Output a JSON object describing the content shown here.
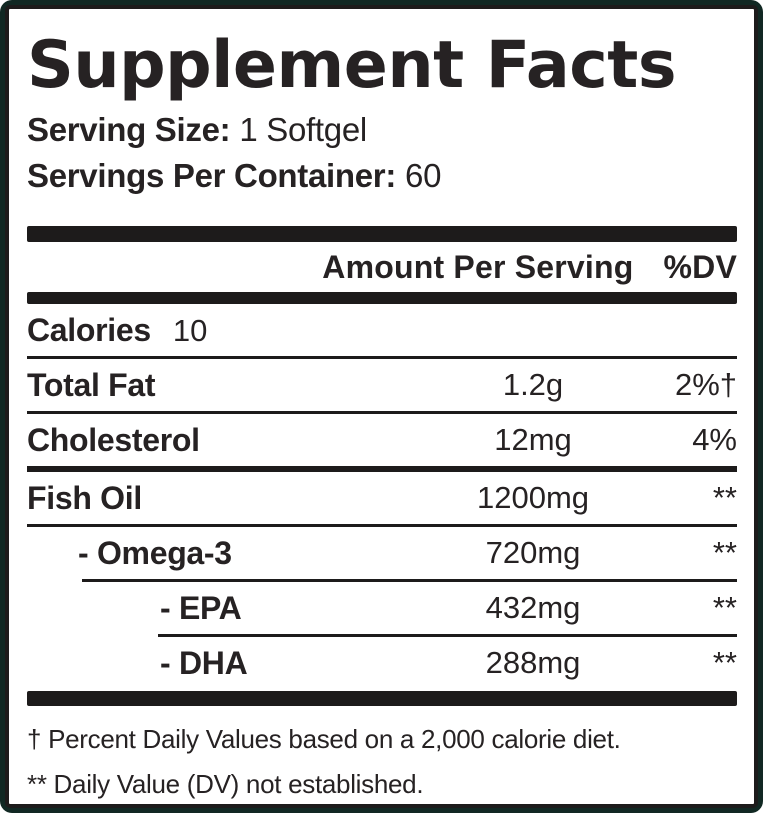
{
  "label": {
    "title": "Supplement Facts",
    "serving": {
      "size_label": "Serving Size:",
      "size_value": "1 Softgel",
      "per_container_label": "Servings Per Container:",
      "per_container_value": "60"
    },
    "table_header": {
      "amount_col": "Amount Per Serving",
      "dv_col": "%DV"
    },
    "rows": [
      {
        "id": "calories",
        "name": "Calories",
        "amount": "10",
        "dv": "",
        "indent": 0,
        "inline_amount": true,
        "divider_after": "thin",
        "divider_indent": 0
      },
      {
        "id": "total-fat",
        "name": "Total Fat",
        "amount": "1.2g",
        "dv": "2%†",
        "indent": 0,
        "inline_amount": false,
        "divider_after": "thin",
        "divider_indent": 0
      },
      {
        "id": "cholesterol",
        "name": "Cholesterol",
        "amount": "12mg",
        "dv": "4%",
        "indent": 0,
        "inline_amount": false,
        "divider_after": "thick",
        "divider_indent": 0
      },
      {
        "id": "fish-oil",
        "name": "Fish Oil",
        "amount": "1200mg",
        "dv": "**",
        "indent": 0,
        "inline_amount": false,
        "divider_after": "thin",
        "divider_indent": 0
      },
      {
        "id": "omega-3",
        "name": "- Omega-3",
        "amount": "720mg",
        "dv": "**",
        "indent": 1,
        "inline_amount": false,
        "divider_after": "thin",
        "divider_indent": 1
      },
      {
        "id": "epa",
        "name": "- EPA",
        "amount": "432mg",
        "dv": "**",
        "indent": 2,
        "inline_amount": false,
        "divider_after": "thin",
        "divider_indent": 2
      },
      {
        "id": "dha",
        "name": "- DHA",
        "amount": "288mg",
        "dv": "**",
        "indent": 2,
        "inline_amount": false,
        "divider_after": "none",
        "divider_indent": 0
      }
    ],
    "footnotes": [
      "† Percent Daily Values based on a 2,000 calorie diet.",
      "** Daily Value (DV) not established."
    ],
    "colors": {
      "frame_green": "#112823",
      "rule_black": "#1d1b1b",
      "text": "#262223",
      "background": "#ffffff"
    }
  }
}
